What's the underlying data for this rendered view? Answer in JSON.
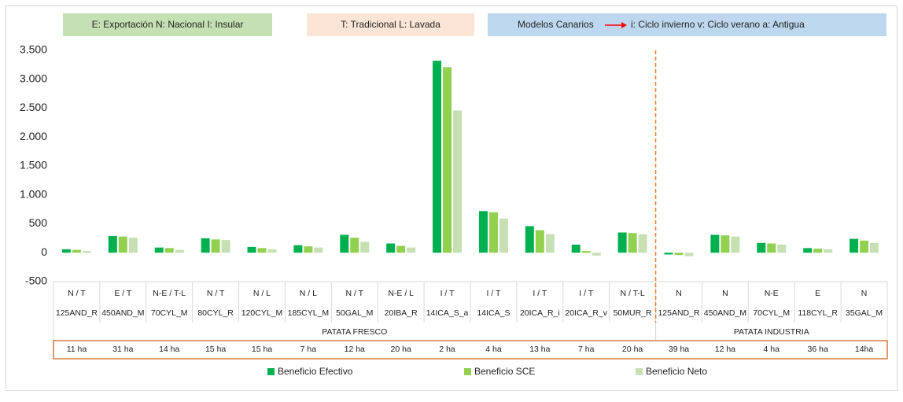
{
  "chart_data": {
    "type": "bar",
    "annotations": [
      {
        "text": "E: Exportación   N: Nacional   I: Insular",
        "color": "#c5e0b3"
      },
      {
        "text": "T: Tradicional   L: Lavada",
        "color": "#fbe5d6"
      },
      {
        "prefix": "Modelos Canarios",
        "text": "i: Ciclo invierno    v: Ciclo verano    a: Antigua",
        "color": "#bdd7ee"
      }
    ],
    "categories": [
      "125AND_R",
      "450AND_M",
      "70CYL_M",
      "80CYL_R",
      "120CYL_M",
      "185CYL_M",
      "50GAL_M",
      "20IBA_R",
      "14ICA_S_a",
      "14ICA_S",
      "20ICA_R_i",
      "20ICA_R_v",
      "50MUR_R",
      "125AND_R",
      "450AND_M",
      "70CYL_M",
      "118CYL_R",
      "35GAL_M"
    ],
    "types": [
      "N / T",
      "E / T",
      "N-E / T-L",
      "N / T",
      "N / L",
      "N / L",
      "N / T",
      "N-E / L",
      "I / T",
      "I / T",
      "I / T",
      "I / T",
      "N / T-L",
      "N",
      "N",
      "N-E",
      "E",
      "N"
    ],
    "areas": [
      "11 ha",
      "31 ha",
      "14 ha",
      "15 ha",
      "15 ha",
      "7 ha",
      "12 ha",
      "20 ha",
      "2 ha",
      "4 ha",
      "13 ha",
      "7 ha",
      "20 ha",
      "39 ha",
      "12 ha",
      "4 ha",
      "36 ha",
      "14ha"
    ],
    "groups": [
      {
        "label": "PATATA FRESCO",
        "count": 13
      },
      {
        "label": "PATATA INDUSTRIA",
        "count": 5
      }
    ],
    "series": [
      {
        "name": "Beneficio Efectivo",
        "color": "#00b050",
        "values": [
          60,
          290,
          90,
          250,
          100,
          130,
          310,
          160,
          3320,
          720,
          460,
          140,
          350,
          -30,
          310,
          170,
          80,
          240
        ]
      },
      {
        "name": "Beneficio SCE",
        "color": "#92d050",
        "values": [
          50,
          280,
          80,
          230,
          80,
          110,
          260,
          120,
          3210,
          700,
          390,
          30,
          340,
          -40,
          300,
          160,
          70,
          210
        ]
      },
      {
        "name": "Beneficio Neto",
        "color": "#c6e0b4",
        "values": [
          30,
          260,
          50,
          220,
          60,
          90,
          190,
          90,
          2460,
          590,
          320,
          -50,
          320,
          -60,
          280,
          140,
          60,
          170
        ]
      }
    ],
    "ylim": [
      -500,
      3500
    ],
    "yticks": [
      -500,
      0,
      500,
      {
        "value": 1000,
        "label": "1.000"
      },
      {
        "value": 1500,
        "label": "1.500"
      },
      {
        "value": 2000,
        "label": "2.000"
      },
      {
        "value": 2500,
        "label": "2.500"
      },
      {
        "value": 3000,
        "label": "3.000"
      },
      {
        "value": 3500,
        "label": "3.500"
      }
    ],
    "grid": false
  }
}
